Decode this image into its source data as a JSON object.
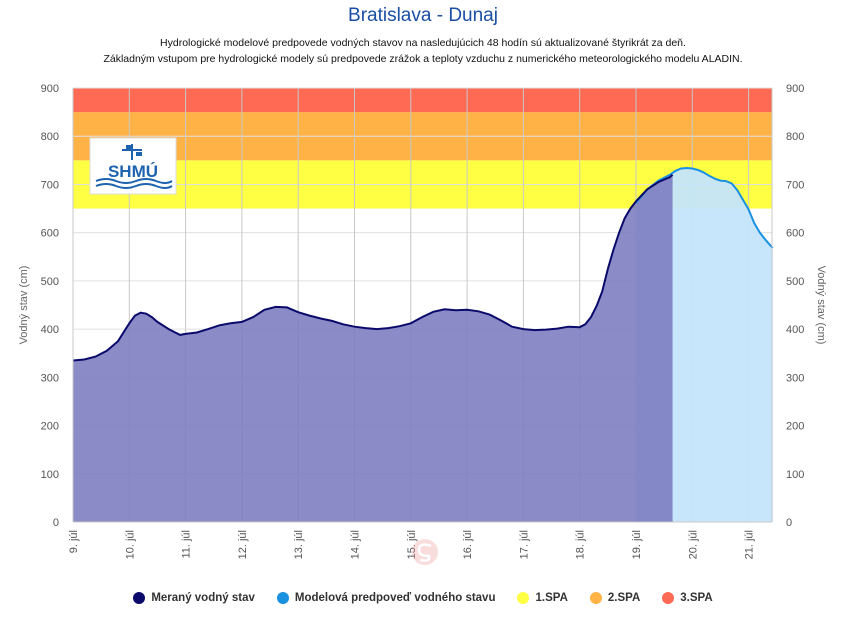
{
  "title": "Bratislava - Dunaj",
  "subtitle_line1": "Hydrologické modelové predpovede vodných stavov na nasledujúcich 48 hodín sú aktualizované štyrikrát za deň.",
  "subtitle_line2": "Základným vstupom pre hydrologické modely sú predpovede zrážok a teploty vzduchu z numerického meteorologického modelu ALADIN.",
  "logo_text": "SHMÚ",
  "colors": {
    "measured_fill": "#7b7bbf",
    "measured_line": "#0a0a6b",
    "forecast_fill": "#c4e5fb",
    "forecast_line": "#1a90e0",
    "spa1": "#ffff44",
    "spa2": "#ffb347",
    "spa3": "#ff6a55",
    "title": "#1a4fa3"
  },
  "chart_data": {
    "type": "area",
    "xlabels": [
      "9. júl",
      "10. júl",
      "11. júl",
      "12. júl",
      "13. júl",
      "14. júl",
      "15. júl",
      "16. júl",
      "17. júl",
      "18. júl",
      "19. júl",
      "20. júl",
      "21. júl"
    ],
    "ylabel_left": "Vodný stav (cm)",
    "ylabel_right": "Vodný stav (cm)",
    "ylim": [
      0,
      900
    ],
    "yticks": [
      0,
      100,
      200,
      300,
      400,
      500,
      600,
      700,
      800,
      900
    ],
    "grid": true,
    "thresholds": [
      {
        "name": "1.SPA",
        "from": 650,
        "to": 750
      },
      {
        "name": "2.SPA",
        "from": 750,
        "to": 850
      },
      {
        "name": "3.SPA",
        "from": 850,
        "to": 900
      }
    ],
    "series": [
      {
        "name": "Meraný vodný stav",
        "x": [
          9.0,
          9.2,
          9.4,
          9.6,
          9.8,
          10.0,
          10.1,
          10.2,
          10.3,
          10.4,
          10.5,
          10.7,
          10.9,
          11.0,
          11.2,
          11.4,
          11.6,
          11.8,
          12.0,
          12.2,
          12.4,
          12.6,
          12.8,
          13.0,
          13.2,
          13.4,
          13.6,
          13.8,
          14.0,
          14.2,
          14.4,
          14.6,
          14.8,
          15.0,
          15.2,
          15.4,
          15.6,
          15.8,
          16.0,
          16.2,
          16.4,
          16.6,
          16.8,
          17.0,
          17.2,
          17.4,
          17.6,
          17.8,
          18.0,
          18.1,
          18.2,
          18.3,
          18.4,
          18.5,
          18.6,
          18.7,
          18.8,
          18.9,
          19.0,
          19.2,
          19.4,
          19.6,
          19.65
        ],
        "y": [
          335,
          337,
          343,
          355,
          375,
          412,
          428,
          434,
          432,
          425,
          415,
          400,
          388,
          390,
          393,
          400,
          408,
          412,
          415,
          425,
          440,
          446,
          445,
          435,
          428,
          422,
          417,
          410,
          405,
          402,
          400,
          402,
          406,
          412,
          425,
          436,
          441,
          439,
          440,
          437,
          430,
          418,
          405,
          400,
          398,
          399,
          401,
          405,
          404,
          410,
          425,
          448,
          478,
          525,
          565,
          600,
          630,
          650,
          665,
          690,
          705,
          715,
          720
        ]
      },
      {
        "name": "Modelová predpoveď vodného stavu",
        "x": [
          19.0,
          19.2,
          19.4,
          19.6,
          19.7,
          19.8,
          19.9,
          20.0,
          20.1,
          20.2,
          20.3,
          20.4,
          20.5,
          20.6,
          20.7,
          20.8,
          20.9,
          21.0,
          21.1,
          21.2,
          21.3,
          21.4,
          21.43
        ],
        "y": [
          662,
          690,
          708,
          720,
          728,
          733,
          734,
          733,
          730,
          725,
          718,
          712,
          708,
          707,
          702,
          688,
          668,
          648,
          620,
          600,
          585,
          572,
          568
        ]
      }
    ],
    "legend": [
      "Meraný vodný stav",
      "Modelová predpoveď vodného stavu",
      "1.SPA",
      "2.SPA",
      "3.SPA"
    ],
    "legend_position": "bottom"
  }
}
